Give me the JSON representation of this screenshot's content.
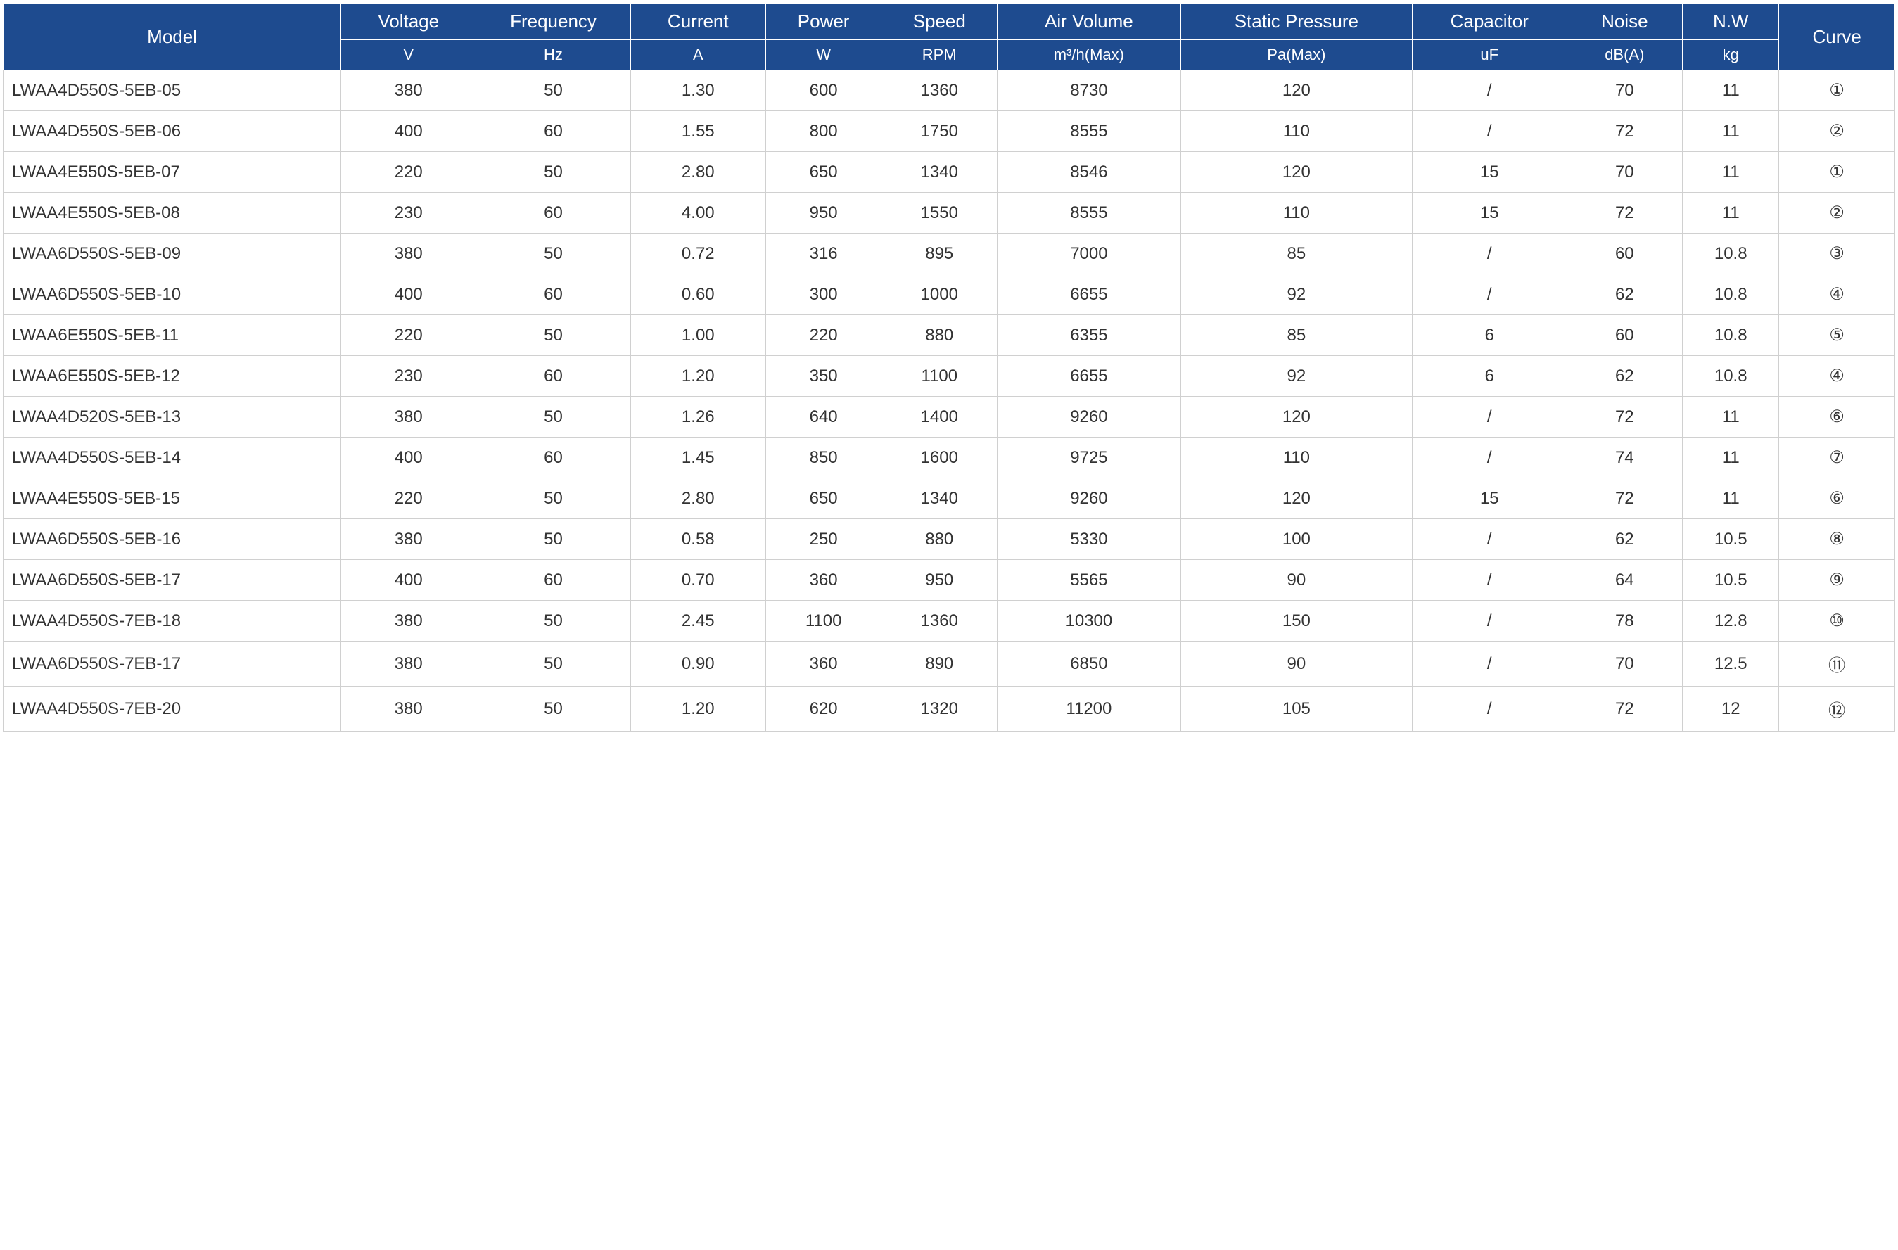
{
  "table": {
    "header_bg": "#1e4b8f",
    "header_text_color": "#ffffff",
    "border_color": "#d0d0d0",
    "cell_text_color": "#333333",
    "font_size_header": 26,
    "font_size_unit": 22,
    "font_size_cell": 24,
    "columns": [
      {
        "label": "Model",
        "unit": "",
        "width": "17.5%",
        "align": "left"
      },
      {
        "label": "Voltage",
        "unit": "V",
        "width": "7%",
        "align": "center"
      },
      {
        "label": "Frequency",
        "unit": "Hz",
        "width": "8%",
        "align": "center"
      },
      {
        "label": "Current",
        "unit": "A",
        "width": "7%",
        "align": "center"
      },
      {
        "label": "Power",
        "unit": "W",
        "width": "6%",
        "align": "center"
      },
      {
        "label": "Speed",
        "unit": "RPM",
        "width": "6%",
        "align": "center"
      },
      {
        "label": "Air Volume",
        "unit": "m³/h(Max)",
        "width": "9.5%",
        "align": "center"
      },
      {
        "label": "Static Pressure",
        "unit": "Pa(Max)",
        "width": "12%",
        "align": "center"
      },
      {
        "label": "Capacitor",
        "unit": "uF",
        "width": "8%",
        "align": "center"
      },
      {
        "label": "Noise",
        "unit": "dB(A)",
        "width": "6%",
        "align": "center"
      },
      {
        "label": "N.W",
        "unit": "kg",
        "width": "5%",
        "align": "center"
      },
      {
        "label": "Curve",
        "unit": "",
        "width": "6%",
        "align": "center"
      }
    ],
    "rows": [
      [
        "LWAA4D550S-5EB-05",
        "380",
        "50",
        "1.30",
        "600",
        "1360",
        "8730",
        "120",
        "/",
        "70",
        "11",
        "①"
      ],
      [
        "LWAA4D550S-5EB-06",
        "400",
        "60",
        "1.55",
        "800",
        "1750",
        "8555",
        "110",
        "/",
        "72",
        "11",
        "②"
      ],
      [
        "LWAA4E550S-5EB-07",
        "220",
        "50",
        "2.80",
        "650",
        "1340",
        "8546",
        "120",
        "15",
        "70",
        "11",
        "①"
      ],
      [
        "LWAA4E550S-5EB-08",
        "230",
        "60",
        "4.00",
        "950",
        "1550",
        "8555",
        "110",
        "15",
        "72",
        "11",
        "②"
      ],
      [
        "LWAA6D550S-5EB-09",
        "380",
        "50",
        "0.72",
        "316",
        "895",
        "7000",
        "85",
        "/",
        "60",
        "10.8",
        "③"
      ],
      [
        "LWAA6D550S-5EB-10",
        "400",
        "60",
        "0.60",
        "300",
        "1000",
        "6655",
        "92",
        "/",
        "62",
        "10.8",
        "④"
      ],
      [
        "LWAA6E550S-5EB-11",
        "220",
        "50",
        "1.00",
        "220",
        "880",
        "6355",
        "85",
        "6",
        "60",
        "10.8",
        "⑤"
      ],
      [
        "LWAA6E550S-5EB-12",
        "230",
        "60",
        "1.20",
        "350",
        "1100",
        "6655",
        "92",
        "6",
        "62",
        "10.8",
        "④"
      ],
      [
        "LWAA4D520S-5EB-13",
        "380",
        "50",
        "1.26",
        "640",
        "1400",
        "9260",
        "120",
        "/",
        "72",
        "11",
        "⑥"
      ],
      [
        "LWAA4D550S-5EB-14",
        "400",
        "60",
        "1.45",
        "850",
        "1600",
        "9725",
        "110",
        "/",
        "74",
        "11",
        "⑦"
      ],
      [
        "LWAA4E550S-5EB-15",
        "220",
        "50",
        "2.80",
        "650",
        "1340",
        "9260",
        "120",
        "15",
        "72",
        "11",
        "⑥"
      ],
      [
        "LWAA6D550S-5EB-16",
        "380",
        "50",
        "0.58",
        "250",
        "880",
        "5330",
        "100",
        "/",
        "62",
        "10.5",
        "⑧"
      ],
      [
        "LWAA6D550S-5EB-17",
        "400",
        "60",
        "0.70",
        "360",
        "950",
        "5565",
        "90",
        "/",
        "64",
        "10.5",
        "⑨"
      ],
      [
        "LWAA4D550S-7EB-18",
        "380",
        "50",
        "2.45",
        "1100",
        "1360",
        "10300",
        "150",
        "/",
        "78",
        "12.8",
        "⑩"
      ],
      [
        "LWAA6D550S-7EB-17",
        "380",
        "50",
        "0.90",
        "360",
        "890",
        "6850",
        "90",
        "/",
        "70",
        "12.5",
        "⑪"
      ],
      [
        "LWAA4D550S-7EB-20",
        "380",
        "50",
        "1.20",
        "620",
        "1320",
        "11200",
        "105",
        "/",
        "72",
        "12",
        "⑫"
      ]
    ]
  }
}
